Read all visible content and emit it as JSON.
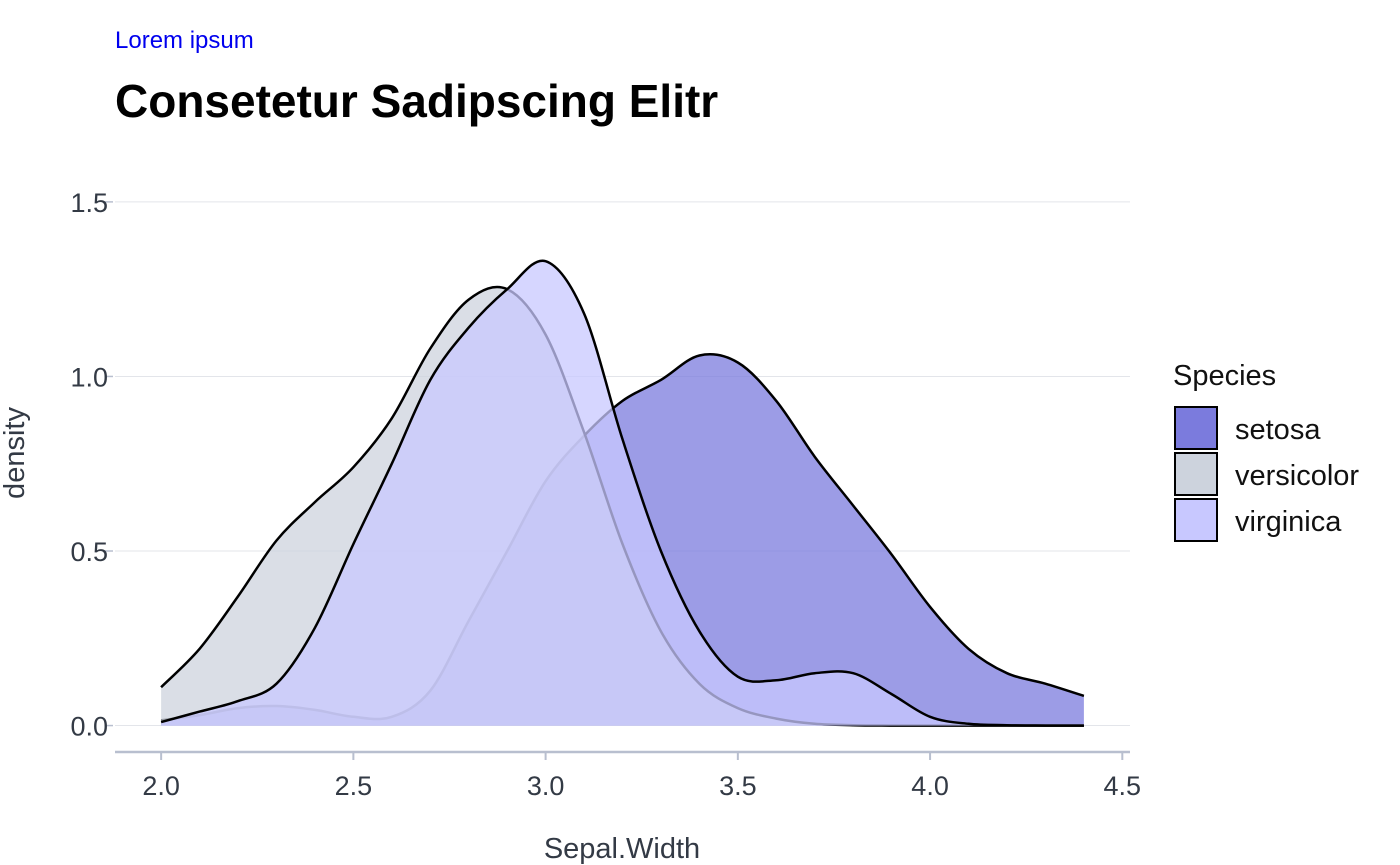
{
  "header": {
    "subtitle": "Lorem ipsum",
    "title": "Consetetur Sadipscing Elitr"
  },
  "colors": {
    "setosa": "#7b7bdd",
    "versicolor": "#cdd3dd",
    "virginica": "#c8c8ff",
    "grid": "#e3e5ea",
    "axis": "#b8bfcf"
  },
  "chart_data": {
    "type": "area",
    "title": "Consetetur Sadipscing Elitr",
    "subtitle": "Lorem ipsum",
    "xlabel": "Sepal.Width",
    "ylabel": "density",
    "xlim": [
      1.88,
      4.52
    ],
    "ylim": [
      -0.07,
      1.62
    ],
    "xticks": [
      "2.0",
      "2.5",
      "3.0",
      "3.5",
      "4.0",
      "4.5"
    ],
    "yticks": [
      "0.0",
      "0.5",
      "1.0",
      "1.5"
    ],
    "grid": "horizontal",
    "legend": {
      "title": "Species",
      "position": "right"
    },
    "series": [
      {
        "name": "setosa",
        "color": "#7b7bdd",
        "x": [
          2.0,
          2.1,
          2.2,
          2.3,
          2.4,
          2.5,
          2.6,
          2.7,
          2.8,
          2.9,
          3.0,
          3.1,
          3.2,
          3.3,
          3.4,
          3.5,
          3.6,
          3.7,
          3.8,
          3.9,
          4.0,
          4.1,
          4.2,
          4.3,
          4.4
        ],
        "y": [
          0.015,
          0.03,
          0.05,
          0.056,
          0.045,
          0.025,
          0.025,
          0.1,
          0.3,
          0.5,
          0.7,
          0.83,
          0.93,
          0.99,
          1.06,
          1.04,
          0.93,
          0.77,
          0.63,
          0.49,
          0.34,
          0.22,
          0.15,
          0.12,
          0.085
        ]
      },
      {
        "name": "versicolor",
        "color": "#cdd3dd",
        "x": [
          2.0,
          2.1,
          2.2,
          2.3,
          2.4,
          2.5,
          2.6,
          2.7,
          2.8,
          2.9,
          3.0,
          3.1,
          3.2,
          3.3,
          3.4,
          3.5,
          3.6,
          3.7,
          3.8,
          3.9,
          4.0,
          4.1,
          4.2,
          4.3,
          4.4
        ],
        "y": [
          0.11,
          0.22,
          0.37,
          0.53,
          0.64,
          0.74,
          0.88,
          1.08,
          1.22,
          1.25,
          1.12,
          0.84,
          0.52,
          0.27,
          0.12,
          0.05,
          0.02,
          0.005,
          0.001,
          0,
          0,
          0,
          0,
          0,
          0
        ]
      },
      {
        "name": "virginica",
        "color": "#c8c8ff",
        "x": [
          2.0,
          2.1,
          2.2,
          2.3,
          2.4,
          2.5,
          2.6,
          2.7,
          2.8,
          2.9,
          3.0,
          3.1,
          3.2,
          3.3,
          3.4,
          3.5,
          3.6,
          3.7,
          3.8,
          3.9,
          4.0,
          4.1,
          4.2,
          4.3,
          4.4
        ],
        "y": [
          0.01,
          0.04,
          0.07,
          0.12,
          0.28,
          0.52,
          0.75,
          0.99,
          1.14,
          1.25,
          1.33,
          1.18,
          0.82,
          0.5,
          0.27,
          0.14,
          0.13,
          0.15,
          0.15,
          0.09,
          0.025,
          0.005,
          0.001,
          0,
          0
        ]
      }
    ]
  }
}
